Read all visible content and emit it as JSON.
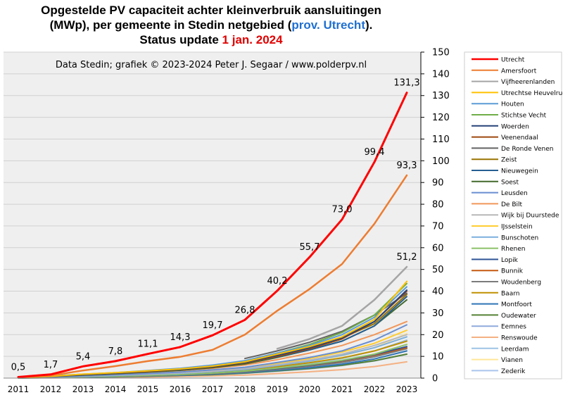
{
  "title": {
    "line1": "Opgestelde PV capaciteit  achter kleinverbruik  aansluitingen",
    "line2_pre": "(MWp), per gemeente in Stedin netgebied (",
    "line2_prov": "prov.",
    "line2_space": " ",
    "line2_utrecht": "Utrecht",
    "line2_post": ").",
    "line3_pre": "Status update ",
    "line3_date": "1 jan. 2024"
  },
  "chart_data": {
    "type": "line",
    "subtitle": "Data Stedin; grafiek © 2023-2024 Peter J. Segaar / www.polderpv.nl",
    "x": [
      "2011",
      "2012",
      "2013",
      "2014",
      "2015",
      "2016",
      "2017",
      "2018",
      "2019",
      "2020",
      "2021",
      "2022",
      "2023"
    ],
    "ylim": [
      0,
      150
    ],
    "yticks": [
      "0",
      "10",
      "20",
      "30",
      "40",
      "50",
      "60",
      "70",
      "80",
      "90",
      "100",
      "110",
      "120",
      "130",
      "140",
      "150"
    ],
    "grid": "horizontal",
    "legend_position": "right",
    "series": [
      {
        "name": "Utrecht",
        "color": "#ff0000",
        "width": 3,
        "values": [
          0.5,
          1.7,
          5.4,
          7.8,
          11.1,
          14.3,
          19.7,
          26.8,
          40.2,
          55.7,
          73.0,
          99.4,
          131.3
        ],
        "labels": [
          "0,5",
          "1,7",
          "5,4",
          "7,8",
          "11,1",
          "14,3",
          "19,7",
          "26,8",
          "40,2",
          "55,7",
          "73,0",
          "99,4",
          "131,3"
        ]
      },
      {
        "name": "Amersfoort",
        "color": "#ed7d31",
        "width": 2.5,
        "values": [
          0.4,
          1.2,
          3.5,
          5.5,
          7.8,
          9.8,
          13,
          20,
          31,
          41,
          52.5,
          71,
          93.3
        ],
        "labels": [
          "",
          "",
          "",
          "",
          "",
          "",
          "",
          "",
          "",
          "",
          "",
          "",
          "93,3"
        ]
      },
      {
        "name": "Vijfheerenlanden",
        "color": "#a5a5a5",
        "width": 2.5,
        "values": [
          null,
          null,
          null,
          null,
          null,
          null,
          null,
          null,
          13.5,
          18,
          24,
          36,
          51.2
        ],
        "labels": [
          "",
          "",
          "",
          "",
          "",
          "",
          "",
          "",
          "",
          "",
          "",
          "",
          "51,2"
        ]
      },
      {
        "name": "Utrechtse Heuvelrug",
        "color": "#ffc000",
        "width": 2,
        "values": [
          0.3,
          0.8,
          1.8,
          2.5,
          3.3,
          4.2,
          5.5,
          7.5,
          11,
          14.5,
          19,
          27,
          44.5
        ]
      },
      {
        "name": "Houten",
        "color": "#5b9bd5",
        "width": 2,
        "values": [
          0.5,
          1,
          1.8,
          2.5,
          3.5,
          4.5,
          6,
          8,
          11.5,
          15,
          20,
          28,
          42
        ]
      },
      {
        "name": "Stichtse Vecht",
        "color": "#70ad47",
        "width": 2,
        "values": [
          null,
          null,
          null,
          null,
          null,
          null,
          null,
          8,
          11.5,
          15.5,
          21,
          29,
          43.5
        ]
      },
      {
        "name": "Woerden",
        "color": "#264478",
        "width": 2,
        "values": [
          0.3,
          0.8,
          1.6,
          2.3,
          3.2,
          4,
          5.3,
          7.2,
          10.5,
          14,
          18.5,
          26,
          40.5
        ]
      },
      {
        "name": "Veenendaal",
        "color": "#9e480e",
        "width": 2,
        "values": [
          0.3,
          0.8,
          1.5,
          2.2,
          3,
          3.9,
          5.1,
          7,
          10,
          13.5,
          18,
          26,
          40
        ]
      },
      {
        "name": "De Ronde Venen",
        "color": "#636363",
        "width": 2,
        "values": [
          null,
          null,
          null,
          null,
          null,
          null,
          null,
          9,
          12.5,
          16.5,
          21.5,
          29,
          39
        ]
      },
      {
        "name": "Zeist",
        "color": "#997300",
        "width": 2,
        "values": [
          0.4,
          0.9,
          1.7,
          2.4,
          3.3,
          4.2,
          5.5,
          7.5,
          10.5,
          14,
          18.5,
          25,
          38.5
        ]
      },
      {
        "name": "Nieuwegein",
        "color": "#255e91",
        "width": 2,
        "values": [
          0.4,
          0.9,
          1.6,
          2.3,
          3.1,
          4,
          5.2,
          7,
          9.8,
          13,
          17,
          24,
          37.5
        ]
      },
      {
        "name": "Soest",
        "color": "#43682b",
        "width": 2,
        "values": [
          0.3,
          0.7,
          1.4,
          2,
          2.8,
          3.6,
          4.8,
          6.5,
          9.5,
          13,
          17,
          24,
          36
        ]
      },
      {
        "name": "Leusden",
        "color": "#698ed0",
        "width": 2,
        "values": [
          0.2,
          0.5,
          1,
          1.5,
          2.1,
          2.8,
          3.8,
          5,
          7.2,
          9.5,
          12.5,
          17.5,
          24.5
        ]
      },
      {
        "name": "De Bilt",
        "color": "#f1975a",
        "width": 2,
        "values": [
          0.3,
          0.7,
          1.3,
          1.9,
          2.6,
          3.4,
          4.5,
          6,
          8.5,
          11.5,
          15,
          20,
          26
        ]
      },
      {
        "name": "Wijk bij Duurstede",
        "color": "#b7b7b7",
        "width": 2,
        "values": [
          0.2,
          0.5,
          0.9,
          1.3,
          1.8,
          2.4,
          3.2,
          4.4,
          6.2,
          8.3,
          11,
          15,
          20
        ]
      },
      {
        "name": "IJsselstein",
        "color": "#ffcd33",
        "width": 2,
        "values": [
          0.2,
          0.5,
          1,
          1.4,
          2,
          2.6,
          3.5,
          4.7,
          6.7,
          9,
          12,
          16,
          22
        ]
      },
      {
        "name": "Bunschoten",
        "color": "#7cafdd",
        "width": 2,
        "values": [
          0.2,
          0.4,
          0.8,
          1.2,
          1.7,
          2.2,
          3,
          4,
          5.8,
          7.8,
          10.5,
          14,
          19
        ]
      },
      {
        "name": "Rhenen",
        "color": "#8cc168",
        "width": 2,
        "values": [
          0.1,
          0.3,
          0.6,
          0.9,
          1.3,
          1.7,
          2.3,
          3.2,
          4.6,
          6.2,
          8.2,
          11,
          15.5
        ]
      },
      {
        "name": "Lopik",
        "color": "#2f5597",
        "width": 2,
        "values": [
          0.1,
          0.3,
          0.6,
          0.9,
          1.3,
          1.7,
          2.3,
          3.1,
          4.4,
          6,
          8,
          10.8,
          14.5
        ]
      },
      {
        "name": "Bunnik",
        "color": "#c55a11",
        "width": 2,
        "values": [
          0.1,
          0.3,
          0.6,
          0.9,
          1.3,
          1.7,
          2.3,
          3.1,
          4.4,
          5.9,
          7.8,
          10.5,
          14
        ]
      },
      {
        "name": "Woudenberg",
        "color": "#7b7b7b",
        "width": 2,
        "values": [
          0.1,
          0.3,
          0.5,
          0.8,
          1.1,
          1.5,
          2,
          2.8,
          4,
          5.4,
          7.2,
          9.8,
          13.5
        ]
      },
      {
        "name": "Baarn",
        "color": "#bf9000",
        "width": 2,
        "values": [
          0.2,
          0.4,
          0.8,
          1.1,
          1.6,
          2.1,
          2.8,
          3.8,
          5.3,
          7.1,
          9.3,
          12.5,
          17
        ]
      },
      {
        "name": "Montfoort",
        "color": "#2e75b6",
        "width": 2,
        "values": [
          0.1,
          0.2,
          0.4,
          0.7,
          1,
          1.3,
          1.8,
          2.5,
          3.6,
          4.8,
          6.4,
          8.8,
          12.5
        ]
      },
      {
        "name": "Oudewater",
        "color": "#548235",
        "width": 2,
        "values": [
          0.1,
          0.2,
          0.4,
          0.6,
          0.9,
          1.2,
          1.6,
          2.3,
          3.3,
          4.4,
          5.9,
          8,
          11
        ]
      },
      {
        "name": "Eemnes",
        "color": "#8faadc",
        "width": 2,
        "values": [
          0.1,
          0.2,
          0.4,
          0.6,
          0.9,
          1.2,
          1.6,
          2.2,
          3.2,
          4.3,
          5.8,
          7.9,
          11
        ]
      },
      {
        "name": "Renswoude",
        "color": "#f4b183",
        "width": 2,
        "values": [
          0.05,
          0.1,
          0.2,
          0.3,
          0.5,
          0.7,
          1,
          1.4,
          2.1,
          2.9,
          3.9,
          5.3,
          7.5
        ]
      },
      {
        "name": "Leerdam",
        "color": "#9dc3e6",
        "width": 2,
        "values": [
          null,
          null,
          null,
          null,
          null,
          null,
          null,
          3.5,
          5,
          6.8,
          9,
          12.5,
          17.5
        ]
      },
      {
        "name": "Vianen",
        "color": "#ffe699",
        "width": 2,
        "values": [
          null,
          null,
          null,
          null,
          null,
          null,
          null,
          4,
          5.8,
          7.8,
          10.2,
          14,
          20.5
        ]
      },
      {
        "name": "Zederik",
        "color": "#a9c4eb",
        "width": 2,
        "values": [
          null,
          null,
          null,
          null,
          null,
          null,
          null,
          2.7,
          3.9,
          5.3,
          7,
          9.8,
          14
        ]
      }
    ]
  }
}
